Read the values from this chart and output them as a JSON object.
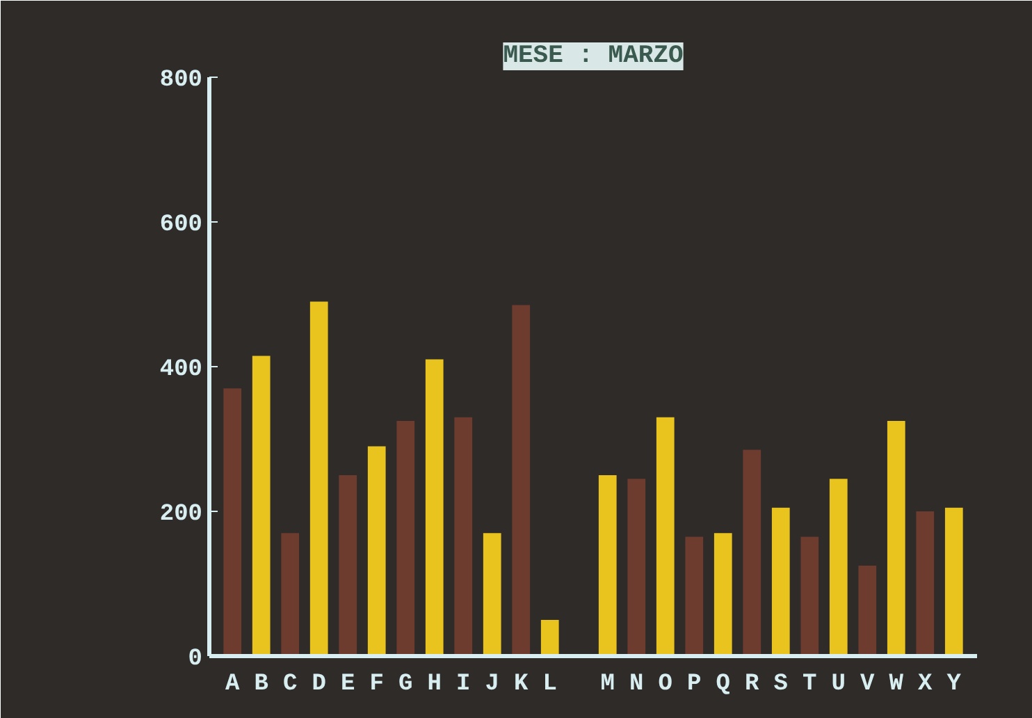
{
  "chart_data": {
    "type": "bar",
    "title": "MESE : MARZO",
    "categories": [
      "A",
      "B",
      "C",
      "D",
      "E",
      "F",
      "G",
      "H",
      "I",
      "J",
      "K",
      "L",
      null,
      "M",
      "N",
      "O",
      "P",
      "Q",
      "R",
      "S",
      "T",
      "U",
      "V",
      "W",
      "X",
      "Y"
    ],
    "values": [
      370,
      415,
      170,
      490,
      250,
      290,
      325,
      410,
      330,
      170,
      485,
      50,
      null,
      250,
      245,
      330,
      165,
      170,
      285,
      205,
      165,
      245,
      125,
      325,
      200,
      205
    ],
    "colors": [
      "#6e3b2f",
      "#e9c31e",
      "#6e3b2f",
      "#e9c31e",
      "#6e3b2f",
      "#e9c31e",
      "#6e3b2f",
      "#e9c31e",
      "#6e3b2f",
      "#e9c31e",
      "#6e3b2f",
      "#e9c31e",
      null,
      "#e9c31e",
      "#6e3b2f",
      "#e9c31e",
      "#6e3b2f",
      "#e9c31e",
      "#6e3b2f",
      "#e9c31e",
      "#6e3b2f",
      "#e9c31e",
      "#6e3b2f",
      "#e9c31e",
      "#6e3b2f",
      "#e9c31e"
    ],
    "ylim": [
      0,
      800
    ],
    "yticks": [
      0,
      200,
      400,
      600,
      800
    ],
    "grid": false
  }
}
